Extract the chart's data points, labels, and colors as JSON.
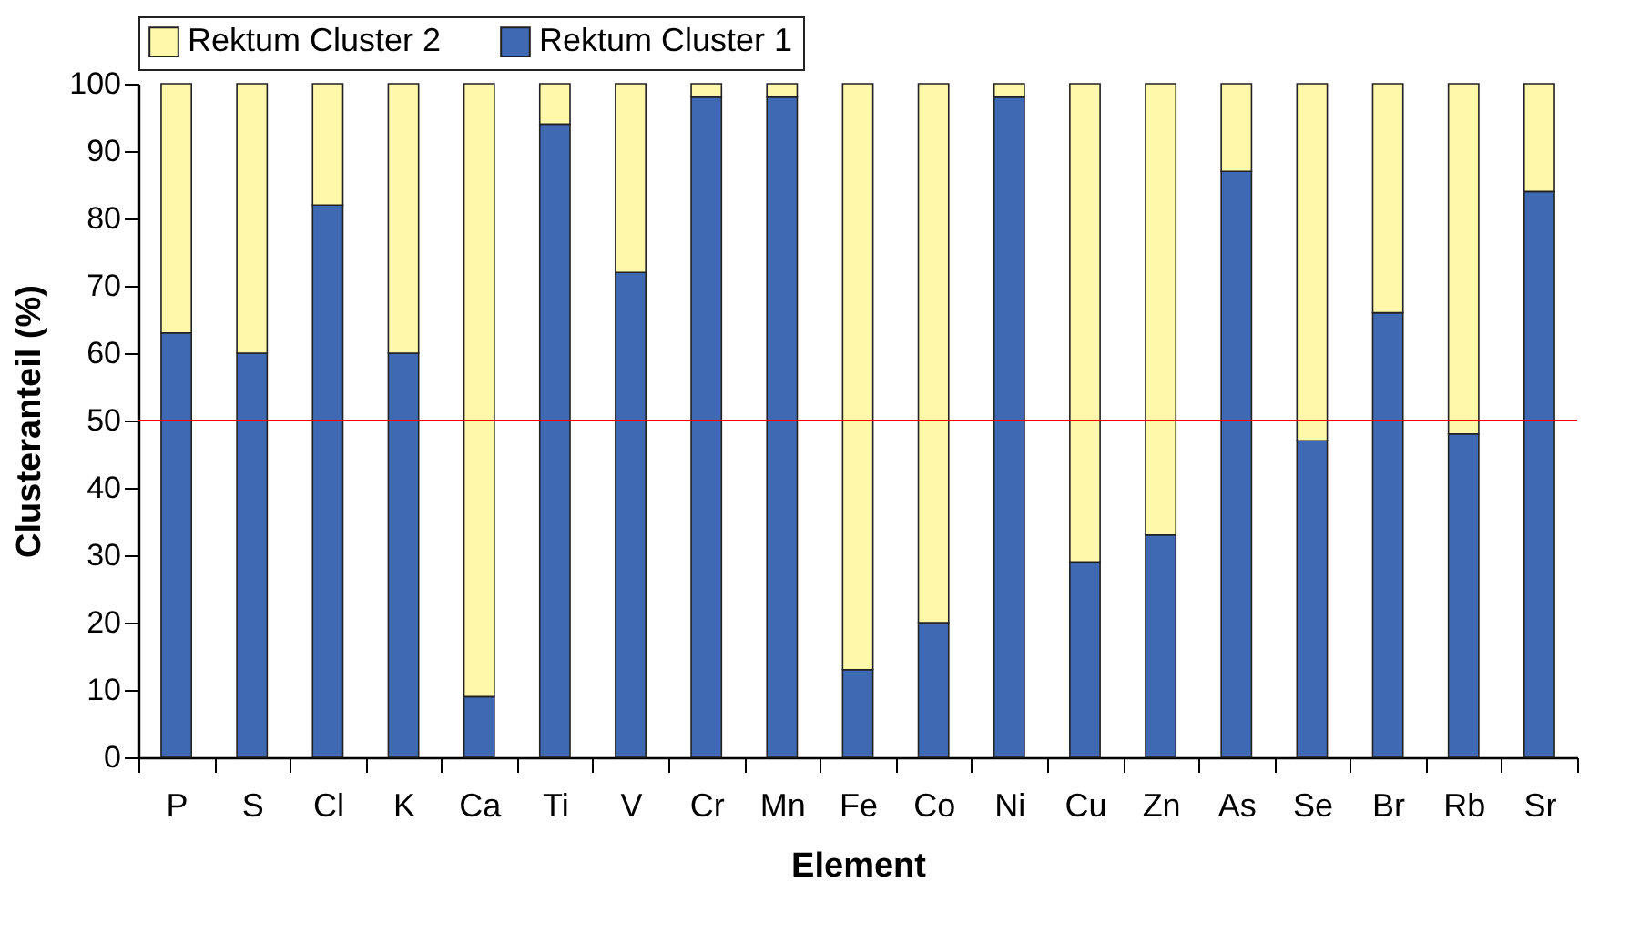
{
  "chart_data": {
    "type": "bar",
    "stacked": true,
    "xlabel": "Element",
    "ylabel": "Clusteranteil (%)",
    "categories": [
      "P",
      "S",
      "Cl",
      "K",
      "Ca",
      "Ti",
      "V",
      "Cr",
      "Mn",
      "Fe",
      "Co",
      "Ni",
      "Cu",
      "Zn",
      "As",
      "Se",
      "Br",
      "Rb",
      "Sr"
    ],
    "series": [
      {
        "name": "Rektum Cluster 1",
        "color": "#3f6ab3",
        "values": [
          63,
          60,
          82,
          60,
          9,
          94,
          72,
          98,
          98,
          13,
          20,
          98,
          29,
          33,
          87,
          47,
          66,
          48,
          84
        ]
      },
      {
        "name": "Rektum Cluster 2",
        "color": "#fff7aa",
        "values": [
          37,
          40,
          18,
          40,
          91,
          6,
          28,
          2,
          2,
          87,
          80,
          2,
          71,
          67,
          13,
          53,
          34,
          52,
          16
        ]
      }
    ],
    "ylim": [
      0,
      100
    ],
    "yticks": [
      0,
      10,
      20,
      30,
      40,
      50,
      60,
      70,
      80,
      90,
      100
    ],
    "ref_lines": [
      {
        "axis": "y",
        "value": 50,
        "color": "#ff0000"
      }
    ],
    "legend": "top",
    "grid": false
  }
}
